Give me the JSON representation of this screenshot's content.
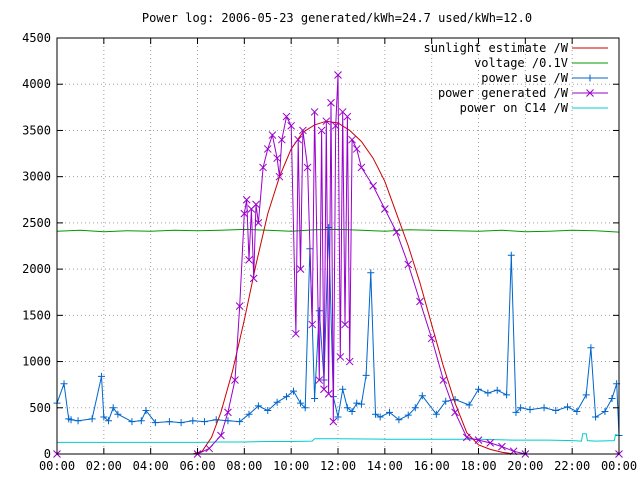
{
  "chart_data": {
    "type": "line",
    "title": "Power log: 2006-05-23 generated/kWh=24.7 used/kWh=12.0",
    "xlabel": "",
    "ylabel": "",
    "xlim": [
      0,
      24
    ],
    "ylim": [
      0,
      4500
    ],
    "x_ticks": [
      {
        "value": 0,
        "label": "00:00"
      },
      {
        "value": 2,
        "label": "02:00"
      },
      {
        "value": 4,
        "label": "04:00"
      },
      {
        "value": 6,
        "label": "06:00"
      },
      {
        "value": 8,
        "label": "08:00"
      },
      {
        "value": 10,
        "label": "10:00"
      },
      {
        "value": 12,
        "label": "12:00"
      },
      {
        "value": 14,
        "label": "14:00"
      },
      {
        "value": 16,
        "label": "16:00"
      },
      {
        "value": 18,
        "label": "18:00"
      },
      {
        "value": 20,
        "label": "20:00"
      },
      {
        "value": 22,
        "label": "22:00"
      },
      {
        "value": 24,
        "label": "00:00"
      }
    ],
    "y_ticks": [
      {
        "value": 0,
        "label": "0"
      },
      {
        "value": 500,
        "label": "500"
      },
      {
        "value": 1000,
        "label": "1000"
      },
      {
        "value": 1500,
        "label": "1500"
      },
      {
        "value": 2000,
        "label": "2000"
      },
      {
        "value": 2500,
        "label": "2500"
      },
      {
        "value": 3000,
        "label": "3000"
      },
      {
        "value": 3500,
        "label": "3500"
      },
      {
        "value": 4000,
        "label": "4000"
      },
      {
        "value": 4500,
        "label": "4500"
      }
    ],
    "grid": true,
    "legend_position": "top-right",
    "series": [
      {
        "name": "sunlight estimate /W",
        "color": "#cc0000",
        "marker": "none",
        "x": [
          0,
          5.8,
          6.2,
          6.6,
          7.0,
          7.5,
          8.0,
          8.5,
          9.0,
          9.5,
          10.0,
          10.5,
          11.0,
          11.5,
          12.0,
          12.5,
          13.0,
          13.5,
          14.0,
          14.5,
          15.0,
          15.5,
          16.0,
          16.5,
          17.0,
          17.5,
          18.0,
          18.5,
          19.0,
          19.5,
          24
        ],
        "y": [
          0,
          0,
          30,
          180,
          450,
          900,
          1450,
          2050,
          2600,
          3000,
          3300,
          3480,
          3560,
          3600,
          3580,
          3500,
          3380,
          3200,
          2950,
          2600,
          2250,
          1850,
          1400,
          950,
          550,
          230,
          100,
          50,
          20,
          0,
          0
        ]
      },
      {
        "name": "voltage /0.1V",
        "color": "#009900",
        "marker": "none",
        "x": [
          0,
          1,
          2,
          3,
          4,
          5,
          6,
          7,
          8,
          9,
          10,
          11,
          12,
          13,
          14,
          15,
          16,
          17,
          18,
          19,
          20,
          21,
          22,
          23,
          24
        ],
        "y": [
          2410,
          2420,
          2405,
          2415,
          2410,
          2420,
          2415,
          2420,
          2430,
          2420,
          2410,
          2425,
          2430,
          2420,
          2410,
          2425,
          2420,
          2415,
          2410,
          2420,
          2405,
          2410,
          2420,
          2415,
          2400
        ]
      },
      {
        "name": "power use /W",
        "color": "#0066cc",
        "marker": "plus",
        "x": [
          0,
          0.3,
          0.5,
          0.6,
          0.9,
          1.5,
          1.9,
          2.0,
          2.2,
          2.4,
          2.6,
          3.2,
          3.6,
          3.8,
          4.2,
          4.8,
          5.3,
          5.8,
          6.3,
          6.8,
          7.3,
          7.8,
          8.2,
          8.6,
          9.0,
          9.4,
          9.8,
          10.1,
          10.4,
          10.6,
          10.8,
          11.0,
          11.2,
          11.4,
          11.6,
          11.8,
          12.0,
          12.2,
          12.4,
          12.6,
          12.8,
          13.0,
          13.2,
          13.4,
          13.6,
          13.8,
          14.2,
          14.6,
          15.0,
          15.3,
          15.6,
          16.2,
          16.6,
          17.0,
          17.6,
          18.0,
          18.4,
          18.8,
          19.2,
          19.4,
          19.6,
          19.8,
          20.2,
          20.8,
          21.3,
          21.8,
          22.2,
          22.6,
          22.8,
          23.0,
          23.4,
          23.7,
          23.9,
          24
        ],
        "y": [
          550,
          760,
          380,
          370,
          360,
          380,
          840,
          400,
          360,
          500,
          430,
          350,
          360,
          470,
          340,
          350,
          340,
          360,
          350,
          370,
          360,
          350,
          430,
          520,
          470,
          560,
          620,
          680,
          550,
          500,
          2220,
          600,
          1550,
          800,
          2450,
          620,
          400,
          700,
          500,
          460,
          550,
          540,
          850,
          1960,
          430,
          400,
          450,
          370,
          420,
          500,
          630,
          430,
          570,
          590,
          530,
          700,
          660,
          690,
          640,
          2150,
          450,
          500,
          480,
          500,
          470,
          510,
          460,
          640,
          1150,
          400,
          460,
          600,
          760,
          200
        ]
      },
      {
        "name": "power generated /W",
        "color": "#9900cc",
        "marker": "x",
        "x": [
          0,
          6.0,
          6.5,
          7.0,
          7.3,
          7.6,
          7.8,
          8.0,
          8.1,
          8.2,
          8.3,
          8.4,
          8.5,
          8.6,
          8.8,
          9.0,
          9.2,
          9.4,
          9.5,
          9.6,
          9.8,
          10.0,
          10.2,
          10.3,
          10.4,
          10.5,
          10.7,
          10.9,
          11.0,
          11.2,
          11.3,
          11.4,
          11.5,
          11.6,
          11.7,
          11.8,
          11.9,
          12.0,
          12.1,
          12.2,
          12.3,
          12.4,
          12.5,
          12.6,
          12.8,
          13.0,
          13.5,
          14.0,
          14.5,
          15.0,
          15.5,
          16.0,
          16.5,
          17.0,
          17.5,
          18.0,
          18.5,
          19.0,
          19.5,
          20.0,
          24
        ],
        "y": [
          0,
          0,
          60,
          200,
          450,
          800,
          1600,
          2600,
          2750,
          2100,
          2650,
          1900,
          2700,
          2500,
          3100,
          3300,
          3450,
          3200,
          3000,
          3400,
          3650,
          3550,
          1300,
          3400,
          2000,
          3500,
          3100,
          1400,
          3700,
          800,
          3500,
          700,
          3600,
          650,
          3800,
          350,
          3550,
          4100,
          1050,
          3700,
          1400,
          3650,
          1000,
          3400,
          3300,
          3100,
          2900,
          2650,
          2400,
          2050,
          1650,
          1250,
          800,
          450,
          180,
          150,
          120,
          80,
          30,
          0,
          0
        ]
      },
      {
        "name": "power on C14 /W",
        "color": "#00cccc",
        "marker": "none",
        "x": [
          0,
          6.0,
          7.0,
          8.0,
          9.0,
          10.0,
          10.9,
          11.0,
          12.0,
          14.0,
          16.0,
          18.0,
          19.5,
          20.0,
          21.0,
          22.0,
          22.4,
          22.45,
          22.6,
          22.65,
          23.0,
          23.8,
          23.85,
          24
        ],
        "y": [
          125,
          125,
          130,
          130,
          135,
          135,
          140,
          165,
          165,
          160,
          160,
          160,
          150,
          150,
          150,
          145,
          140,
          220,
          220,
          145,
          140,
          145,
          210,
          200
        ]
      }
    ]
  }
}
